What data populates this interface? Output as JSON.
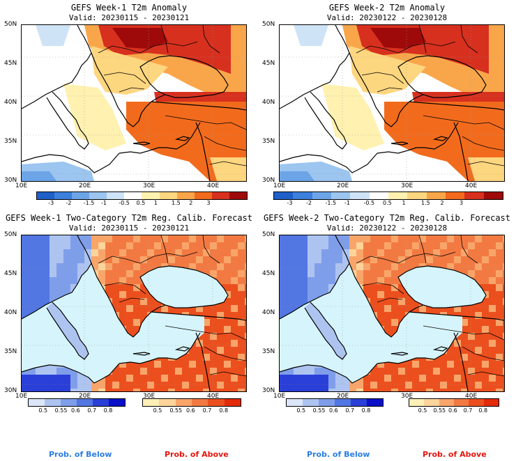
{
  "panels": [
    {
      "title": "GEFS Week-1 T2m Anomaly",
      "valid": "Valid: 20230115 - 20230121"
    },
    {
      "title": "GEFS Week-2 T2m Anomaly",
      "valid": "Valid: 20230122 - 20230128"
    },
    {
      "title": "GEFS Week-1 Two-Category T2m Reg. Calib. Forecast",
      "valid": "Valid: 20230115 - 20230121"
    },
    {
      "title": "GEFS Week-2 Two-Category T2m Reg. Calib. Forecast",
      "valid": "Valid: 20230122 - 20230128"
    }
  ],
  "axes": {
    "lat_labels": [
      "50N",
      "45N",
      "40N",
      "35N",
      "30N"
    ],
    "lon_labels": [
      "10E",
      "20E",
      "30E",
      "40E"
    ]
  },
  "anomaly_colorbar": {
    "labels": [
      "-3",
      "-2",
      "-1.5",
      "-1",
      "-0.5",
      "0.5",
      "1",
      "1.5",
      "2",
      "3"
    ],
    "colors": [
      "#1f5fc8",
      "#3d7fdc",
      "#6ca4e8",
      "#9cc5f0",
      "#cfe3f7",
      "#ffffff",
      "#fff1b0",
      "#fdd680",
      "#f9a64a",
      "#f26b1d",
      "#d7301f",
      "#9e0a0a"
    ]
  },
  "prob_colorbar": {
    "below_labels": [
      "0.5",
      "0.55",
      "0.6",
      "0.7",
      "0.8"
    ],
    "above_labels": [
      "0.5",
      "0.55",
      "0.6",
      "0.7",
      "0.8"
    ],
    "below_colors": [
      "#dbe6f8",
      "#aec4f0",
      "#7f9eea",
      "#5276e2",
      "#2a3fd8",
      "#0a10c8"
    ],
    "above_colors": [
      "#fff0b8",
      "#fdd49a",
      "#f9a56a",
      "#f27a42",
      "#ec4f1e",
      "#e32a0a"
    ]
  },
  "legend": {
    "below": "Prob. of Below",
    "above": "Prob. of Above"
  },
  "colors": {
    "below_text": "#2a7de1",
    "above_text": "#e3160e",
    "sea": "#d6f4fb"
  }
}
